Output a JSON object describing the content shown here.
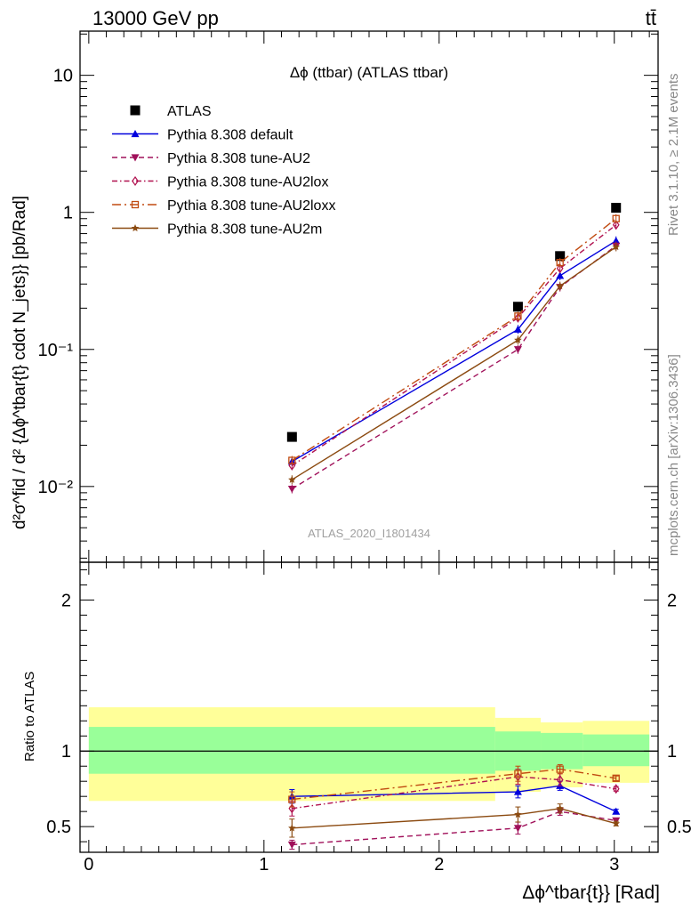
{
  "header": {
    "energy": "13000 GeV pp",
    "process": "tt̄"
  },
  "side_labels": {
    "rivet": "Rivet 3.1.10, ≥ 2.1M events",
    "mcplots": "mcplots.cern.ch [arXiv:1306.3436]"
  },
  "chart_data": [
    {
      "type": "line",
      "title": "Δϕ (ttbar) (ATLAS ttbar)",
      "watermark": "ATLAS_2020_I1801434",
      "ylabel": "d²σ^fid / d² {Δϕ^tbar{t} cdot N_jets}} [pb/Rad]",
      "yscale": "log",
      "ylim": [
        0.0028,
        21
      ],
      "xlim": [
        -0.05,
        3.25
      ],
      "y_tick_labels": [
        "10⁻²",
        "10⁻¹",
        "1",
        "10"
      ],
      "legend_position": "top-left",
      "series": [
        {
          "name": "ATLAS",
          "color": "#000000",
          "marker": "square",
          "x": [
            1.16,
            2.45,
            2.69,
            3.01
          ],
          "y": [
            0.023,
            0.205,
            0.48,
            1.08
          ]
        },
        {
          "name": "Pythia 8.308 default",
          "color": "#0000dd",
          "marker": "triangle-up",
          "dash": "solid",
          "x": [
            1.16,
            2.45,
            2.69,
            3.01
          ],
          "y": [
            0.0152,
            0.14,
            0.345,
            0.62
          ]
        },
        {
          "name": "Pythia 8.308 tune-AU2",
          "color": "#a0105a",
          "marker": "triangle-down",
          "dash": "dashed",
          "x": [
            1.16,
            2.45,
            2.69,
            3.01
          ],
          "y": [
            0.0096,
            0.1,
            0.285,
            0.57
          ]
        },
        {
          "name": "Pythia 8.308 tune-AU2lox",
          "color": "#b0104e",
          "marker": "diamond-open",
          "dash": "dashdot",
          "x": [
            1.16,
            2.45,
            2.69,
            3.01
          ],
          "y": [
            0.0142,
            0.17,
            0.39,
            0.81
          ]
        },
        {
          "name": "Pythia 8.308 tune-AU2loxx",
          "color": "#c04a10",
          "marker": "square-open",
          "dash": "dashdotlong",
          "x": [
            1.16,
            2.45,
            2.69,
            3.01
          ],
          "y": [
            0.0155,
            0.175,
            0.43,
            0.9
          ]
        },
        {
          "name": "Pythia 8.308 tune-AU2m",
          "color": "#8b4a10",
          "marker": "star",
          "dash": "solid",
          "x": [
            1.16,
            2.45,
            2.69,
            3.01
          ],
          "y": [
            0.0112,
            0.117,
            0.29,
            0.56
          ]
        }
      ]
    },
    {
      "type": "line",
      "ylabel": "Ratio to ATLAS",
      "xlabel": "Δϕ^tbar{t}} [Rad]",
      "ylim": [
        0.33,
        2.25
      ],
      "xlim": [
        -0.05,
        3.25
      ],
      "x_tick_labels": [
        "0",
        "1",
        "2",
        "3"
      ],
      "y_tick_labels": [
        "0.5",
        "1",
        "2"
      ],
      "reference_line": 1,
      "uncertainty_bands": [
        {
          "x0": 0.0,
          "x1": 2.32,
          "inner": [
            0.85,
            1.16
          ],
          "outer": [
            0.67,
            1.29
          ]
        },
        {
          "x0": 2.32,
          "x1": 2.58,
          "inner": [
            0.87,
            1.13
          ],
          "outer": [
            0.73,
            1.22
          ]
        },
        {
          "x0": 2.58,
          "x1": 2.82,
          "inner": [
            0.88,
            1.12
          ],
          "outer": [
            0.76,
            1.19
          ]
        },
        {
          "x0": 2.82,
          "x1": 3.2,
          "inner": [
            0.9,
            1.11
          ],
          "outer": [
            0.79,
            1.2
          ]
        }
      ],
      "series": [
        {
          "name": "Pythia 8.308 default",
          "x": [
            1.16,
            2.45,
            2.69,
            3.01
          ],
          "y": [
            0.7,
            0.73,
            0.77,
            0.6
          ],
          "err": [
            0.045,
            0.04,
            0.03,
            0.015
          ]
        },
        {
          "name": "Pythia 8.308 tune-AU2",
          "x": [
            1.16,
            2.45,
            2.69,
            3.01
          ],
          "y": [
            0.38,
            0.49,
            0.6,
            0.54
          ],
          "err": [
            0.03,
            0.04,
            0.025,
            0.015
          ]
        },
        {
          "name": "Pythia 8.308 tune-AU2lox",
          "x": [
            1.16,
            2.45,
            2.69,
            3.01
          ],
          "y": [
            0.62,
            0.83,
            0.81,
            0.75
          ],
          "err": [
            0.05,
            0.05,
            0.04,
            0.015
          ]
        },
        {
          "name": "Pythia 8.308 tune-AU2loxx",
          "x": [
            1.16,
            2.45,
            2.69,
            3.01
          ],
          "y": [
            0.68,
            0.85,
            0.88,
            0.82
          ],
          "err": [
            0.05,
            0.05,
            0.03,
            0.015
          ]
        },
        {
          "name": "Pythia 8.308 tune-AU2m",
          "x": [
            1.16,
            2.45,
            2.69,
            3.01
          ],
          "y": [
            0.49,
            0.58,
            0.62,
            0.52
          ],
          "err": [
            0.06,
            0.05,
            0.03,
            0.015
          ]
        }
      ]
    }
  ]
}
